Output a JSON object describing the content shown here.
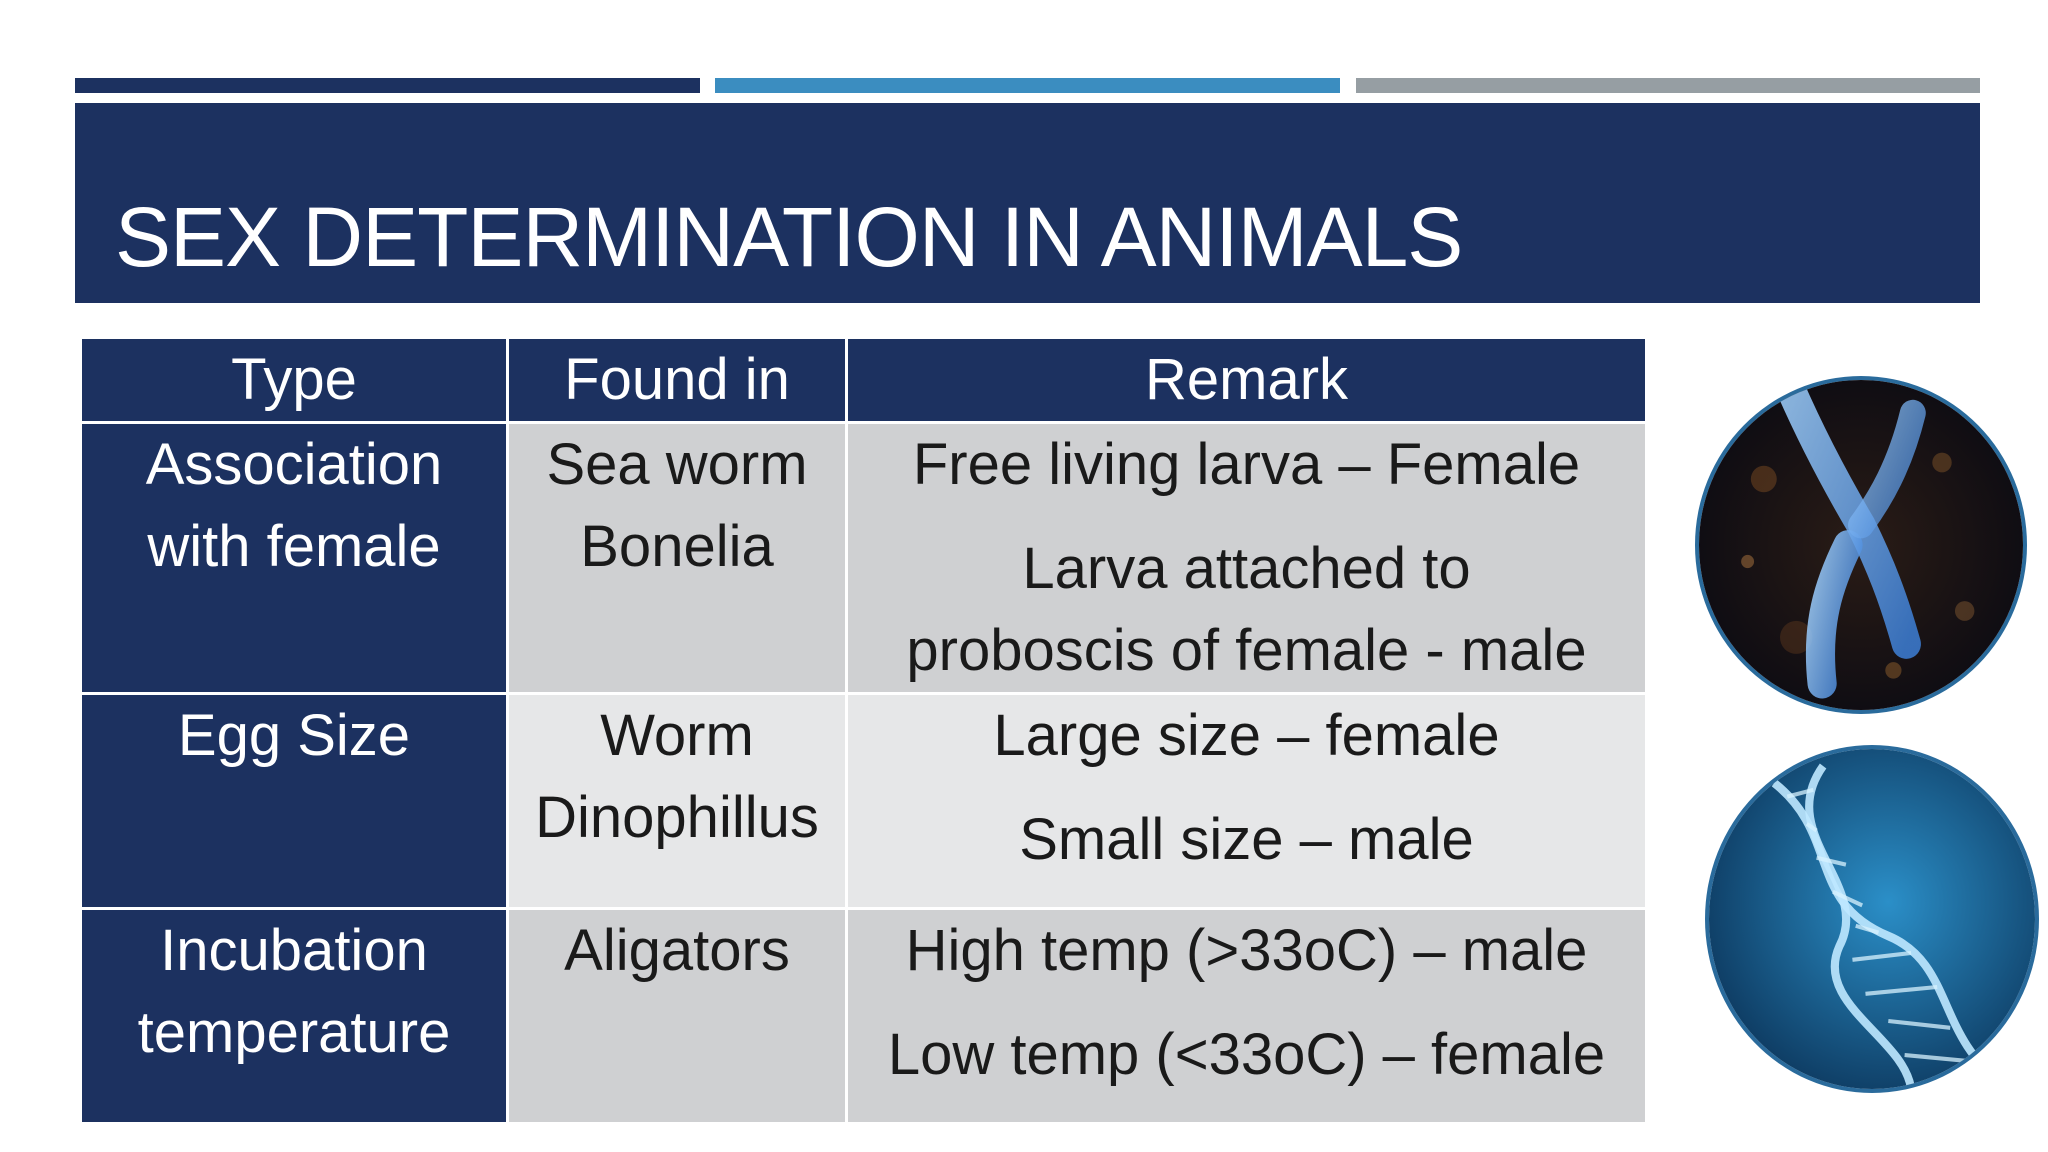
{
  "slide": {
    "title": "SEX DETERMINATION IN ANIMALS"
  },
  "table": {
    "headers": [
      "Type",
      "Found in",
      "Remark"
    ],
    "rows": [
      {
        "type": [
          "Association",
          "with female"
        ],
        "found_in": [
          "Sea worm",
          "Bonelia"
        ],
        "remark": [
          "Free living larva – Female",
          "Larva attached to proboscis of female - male"
        ]
      },
      {
        "type": [
          "Egg Size"
        ],
        "found_in": [
          "Worm",
          "Dinophillus"
        ],
        "remark": [
          "Large size – female",
          "Small size – male"
        ]
      },
      {
        "type": [
          "Incubation",
          "temperature"
        ],
        "found_in": [
          "Aligators"
        ],
        "remark": [
          "High temp (>33oC) – male",
          "Low temp (<33oC) – female"
        ]
      }
    ]
  },
  "images": [
    {
      "icon": "chromosome-image"
    },
    {
      "icon": "dna-helix-image"
    }
  ],
  "colors": {
    "navy": "#1c3160",
    "blue_accent": "#3b8dc0",
    "gray_accent": "#969ea3",
    "cell_gray_dark": "#cfd0d2",
    "cell_gray_light": "#e6e7e8"
  }
}
